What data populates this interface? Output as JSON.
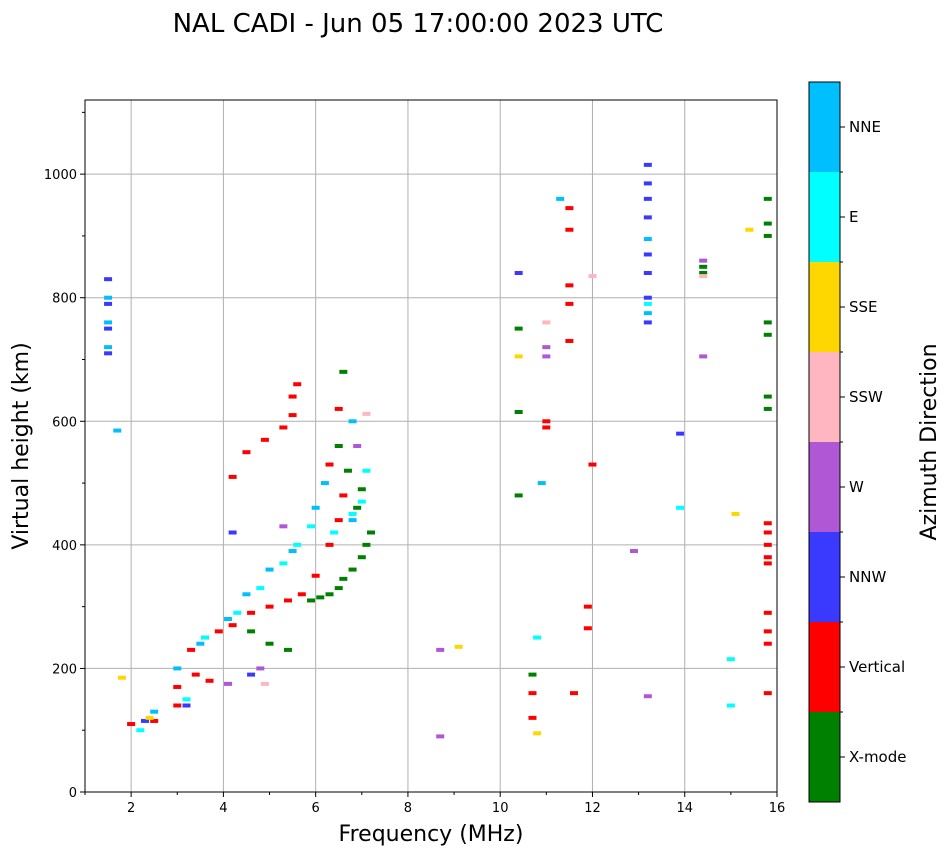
{
  "chart_data": {
    "type": "scatter",
    "title": "NAL CADI - Jun 05 17:00:00 2023 UTC",
    "xlabel": "Frequency (MHz)",
    "ylabel": "Virtual height (km)",
    "xlim": [
      1,
      16
    ],
    "ylim": [
      0,
      1120
    ],
    "xticks": [
      "2",
      "4",
      "6",
      "8",
      "10",
      "12",
      "14",
      "16"
    ],
    "yticks": [
      "0",
      "200",
      "400",
      "600",
      "800",
      "1000"
    ],
    "grid": true,
    "colorbar": {
      "label": "Azimuth Direction",
      "categories": [
        {
          "name": "X-mode",
          "color": "#008000"
        },
        {
          "name": "Vertical",
          "color": "#ff0000"
        },
        {
          "name": "NNW",
          "color": "#3a3aff"
        },
        {
          "name": "W",
          "color": "#b057d6"
        },
        {
          "name": "SSW",
          "color": "#ffb6c1"
        },
        {
          "name": "SSE",
          "color": "#ffd700"
        },
        {
          "name": "E",
          "color": "#00ffff"
        },
        {
          "name": "NNE",
          "color": "#00bfff"
        }
      ]
    },
    "series": [
      {
        "name": "X-mode",
        "points": [
          [
            5.9,
            310
          ],
          [
            6.1,
            315
          ],
          [
            6.3,
            320
          ],
          [
            6.5,
            330
          ],
          [
            6.6,
            345
          ],
          [
            6.8,
            360
          ],
          [
            7.0,
            380
          ],
          [
            7.1,
            400
          ],
          [
            7.2,
            420
          ],
          [
            6.9,
            460
          ],
          [
            7.0,
            490
          ],
          [
            6.7,
            520
          ],
          [
            6.5,
            560
          ],
          [
            6.6,
            680
          ],
          [
            4.6,
            260
          ],
          [
            5.0,
            240
          ],
          [
            5.4,
            230
          ],
          [
            10.7,
            190
          ],
          [
            10.4,
            750
          ],
          [
            10.4,
            615
          ],
          [
            10.4,
            480
          ],
          [
            15.8,
            960
          ],
          [
            15.8,
            920
          ],
          [
            15.8,
            900
          ],
          [
            15.8,
            760
          ],
          [
            15.8,
            740
          ],
          [
            15.8,
            640
          ],
          [
            15.8,
            620
          ],
          [
            14.4,
            850
          ],
          [
            14.4,
            840
          ]
        ]
      },
      {
        "name": "Vertical",
        "points": [
          [
            2.0,
            110
          ],
          [
            2.5,
            115
          ],
          [
            3.0,
            140
          ],
          [
            3.0,
            170
          ],
          [
            3.3,
            230
          ],
          [
            3.6,
            250
          ],
          [
            3.9,
            260
          ],
          [
            4.2,
            270
          ],
          [
            4.6,
            290
          ],
          [
            5.0,
            300
          ],
          [
            5.4,
            310
          ],
          [
            5.7,
            320
          ],
          [
            6.0,
            350
          ],
          [
            6.3,
            400
          ],
          [
            6.5,
            440
          ],
          [
            6.6,
            480
          ],
          [
            6.3,
            530
          ],
          [
            6.5,
            620
          ],
          [
            5.5,
            640
          ],
          [
            5.6,
            660
          ],
          [
            4.2,
            510
          ],
          [
            4.5,
            550
          ],
          [
            4.9,
            570
          ],
          [
            5.3,
            590
          ],
          [
            5.5,
            610
          ],
          [
            3.4,
            190
          ],
          [
            3.7,
            180
          ],
          [
            10.7,
            120
          ],
          [
            10.7,
            160
          ],
          [
            11.0,
            600
          ],
          [
            11.0,
            590
          ],
          [
            11.5,
            730
          ],
          [
            11.5,
            790
          ],
          [
            11.5,
            820
          ],
          [
            11.5,
            910
          ],
          [
            11.5,
            945
          ],
          [
            11.9,
            300
          ],
          [
            11.9,
            265
          ],
          [
            12.0,
            530
          ],
          [
            11.6,
            160
          ],
          [
            15.8,
            160
          ],
          [
            15.8,
            240
          ],
          [
            15.8,
            260
          ],
          [
            15.8,
            290
          ],
          [
            15.8,
            370
          ],
          [
            15.8,
            380
          ],
          [
            15.8,
            400
          ],
          [
            15.8,
            420
          ],
          [
            15.8,
            435
          ]
        ]
      },
      {
        "name": "NNW",
        "points": [
          [
            1.5,
            710
          ],
          [
            1.5,
            750
          ],
          [
            1.5,
            790
          ],
          [
            1.5,
            830
          ],
          [
            4.2,
            420
          ],
          [
            4.6,
            190
          ],
          [
            13.2,
            760
          ],
          [
            13.2,
            800
          ],
          [
            13.2,
            840
          ],
          [
            13.2,
            870
          ],
          [
            13.2,
            930
          ],
          [
            13.2,
            960
          ],
          [
            13.2,
            985
          ],
          [
            13.2,
            1015
          ],
          [
            10.4,
            840
          ],
          [
            13.9,
            580
          ],
          [
            3.2,
            140
          ],
          [
            2.3,
            115
          ]
        ]
      },
      {
        "name": "W",
        "points": [
          [
            4.1,
            175
          ],
          [
            4.8,
            200
          ],
          [
            5.3,
            430
          ],
          [
            8.7,
            230
          ],
          [
            8.7,
            90
          ],
          [
            11.0,
            720
          ],
          [
            11.0,
            705
          ],
          [
            12.9,
            390
          ],
          [
            13.2,
            155
          ],
          [
            14.4,
            705
          ],
          [
            14.4,
            860
          ],
          [
            6.9,
            560
          ]
        ]
      },
      {
        "name": "SSW",
        "points": [
          [
            4.9,
            175
          ],
          [
            11.0,
            760
          ],
          [
            12.0,
            835
          ],
          [
            14.4,
            835
          ],
          [
            7.1,
            612
          ]
        ]
      },
      {
        "name": "SSE",
        "points": [
          [
            9.1,
            235
          ],
          [
            10.8,
            95
          ],
          [
            10.4,
            705
          ],
          [
            15.1,
            450
          ],
          [
            15.4,
            910
          ],
          [
            1.8,
            185
          ],
          [
            2.4,
            120
          ]
        ]
      },
      {
        "name": "E",
        "points": [
          [
            3.2,
            150
          ],
          [
            3.6,
            250
          ],
          [
            4.3,
            290
          ],
          [
            4.8,
            330
          ],
          [
            5.3,
            370
          ],
          [
            5.6,
            400
          ],
          [
            5.9,
            430
          ],
          [
            6.4,
            420
          ],
          [
            6.8,
            450
          ],
          [
            7.1,
            520
          ],
          [
            10.8,
            250
          ],
          [
            13.9,
            460
          ],
          [
            15.0,
            215
          ],
          [
            15.0,
            140
          ],
          [
            13.2,
            790
          ],
          [
            2.2,
            100
          ],
          [
            7.0,
            470
          ]
        ]
      },
      {
        "name": "NNE",
        "points": [
          [
            1.5,
            720
          ],
          [
            1.5,
            760
          ],
          [
            1.5,
            800
          ],
          [
            3.0,
            200
          ],
          [
            3.5,
            240
          ],
          [
            4.1,
            280
          ],
          [
            4.5,
            320
          ],
          [
            5.0,
            360
          ],
          [
            5.5,
            390
          ],
          [
            6.0,
            460
          ],
          [
            6.2,
            500
          ],
          [
            6.8,
            600
          ],
          [
            6.8,
            440
          ],
          [
            11.3,
            960
          ],
          [
            13.2,
            775
          ],
          [
            13.2,
            895
          ],
          [
            10.9,
            500
          ],
          [
            1.7,
            585
          ],
          [
            2.5,
            130
          ]
        ]
      }
    ]
  }
}
